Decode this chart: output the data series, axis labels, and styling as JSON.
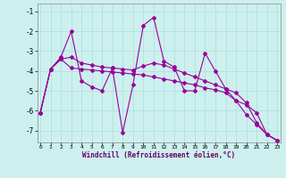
{
  "xlabel": "Windchill (Refroidissement éolien,°C)",
  "bg_color": "#cdf0ee",
  "line_color": "#990099",
  "grid_color": "#aadddd",
  "xlim": [
    -0.3,
    23.3
  ],
  "ylim": [
    -7.6,
    -0.6
  ],
  "yticks": [
    -7,
    -6,
    -5,
    -4,
    -3,
    -2,
    -1
  ],
  "xticks": [
    0,
    1,
    2,
    3,
    4,
    5,
    6,
    7,
    8,
    9,
    10,
    11,
    12,
    13,
    14,
    15,
    16,
    17,
    18,
    19,
    20,
    21,
    22,
    23
  ],
  "series1_x": [
    0,
    1,
    2,
    3,
    4,
    5,
    6,
    7,
    8,
    9,
    10,
    11,
    12,
    13,
    14,
    15,
    16,
    17,
    18,
    19,
    20,
    21,
    22,
    23
  ],
  "series1_y": [
    -6.1,
    -3.9,
    -3.3,
    -2.0,
    -4.5,
    -4.8,
    -5.0,
    -3.85,
    -7.1,
    -4.7,
    -1.7,
    -1.3,
    -3.5,
    -3.8,
    -5.0,
    -5.0,
    -3.1,
    -4.0,
    -4.9,
    -5.5,
    -5.7,
    -6.1,
    -7.2,
    -7.5
  ],
  "series2_x": [
    0,
    1,
    2,
    3,
    4,
    5,
    6,
    7,
    8,
    9,
    10,
    11,
    12,
    13,
    14,
    15,
    16,
    17,
    18,
    19,
    20,
    21,
    22,
    23
  ],
  "series2_y": [
    -6.1,
    -3.9,
    -3.4,
    -3.3,
    -3.6,
    -3.7,
    -3.8,
    -3.85,
    -3.9,
    -3.95,
    -3.75,
    -3.6,
    -3.7,
    -3.9,
    -4.1,
    -4.3,
    -4.5,
    -4.7,
    -4.9,
    -5.1,
    -5.6,
    -6.6,
    -7.2,
    -7.5
  ],
  "series3_x": [
    0,
    1,
    2,
    3,
    4,
    5,
    6,
    7,
    8,
    9,
    10,
    11,
    12,
    13,
    14,
    15,
    16,
    17,
    18,
    19,
    20,
    21,
    22,
    23
  ],
  "series3_y": [
    -6.1,
    -3.9,
    -3.4,
    -3.85,
    -3.9,
    -3.95,
    -4.0,
    -4.05,
    -4.1,
    -4.15,
    -4.2,
    -4.3,
    -4.4,
    -4.5,
    -4.6,
    -4.7,
    -4.85,
    -4.95,
    -5.1,
    -5.5,
    -6.2,
    -6.7,
    -7.2,
    -7.5
  ]
}
